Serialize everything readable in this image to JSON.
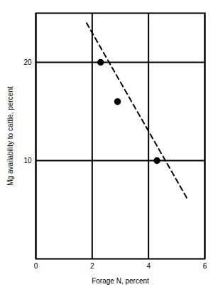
{
  "chart_data": {
    "type": "scatter",
    "x_label": "Forage N, percent",
    "y_label": "Mg availability to cattle, percent",
    "series": [
      {
        "type": "scatter",
        "color": "#000000",
        "marker": "circle",
        "x": [
          2.3,
          2.9,
          4.3
        ],
        "values": [
          20,
          16,
          10
        ]
      },
      {
        "type": "line",
        "color": "#000000",
        "line_style": "dashed",
        "x": [
          1.8,
          5.4
        ],
        "values": [
          24,
          6
        ]
      }
    ],
    "xlim": [
      0,
      6
    ],
    "xticks": [
      0,
      2,
      4,
      6
    ],
    "ylim": [
      0,
      25
    ],
    "yticks": [
      10,
      20
    ],
    "grid": true
  }
}
